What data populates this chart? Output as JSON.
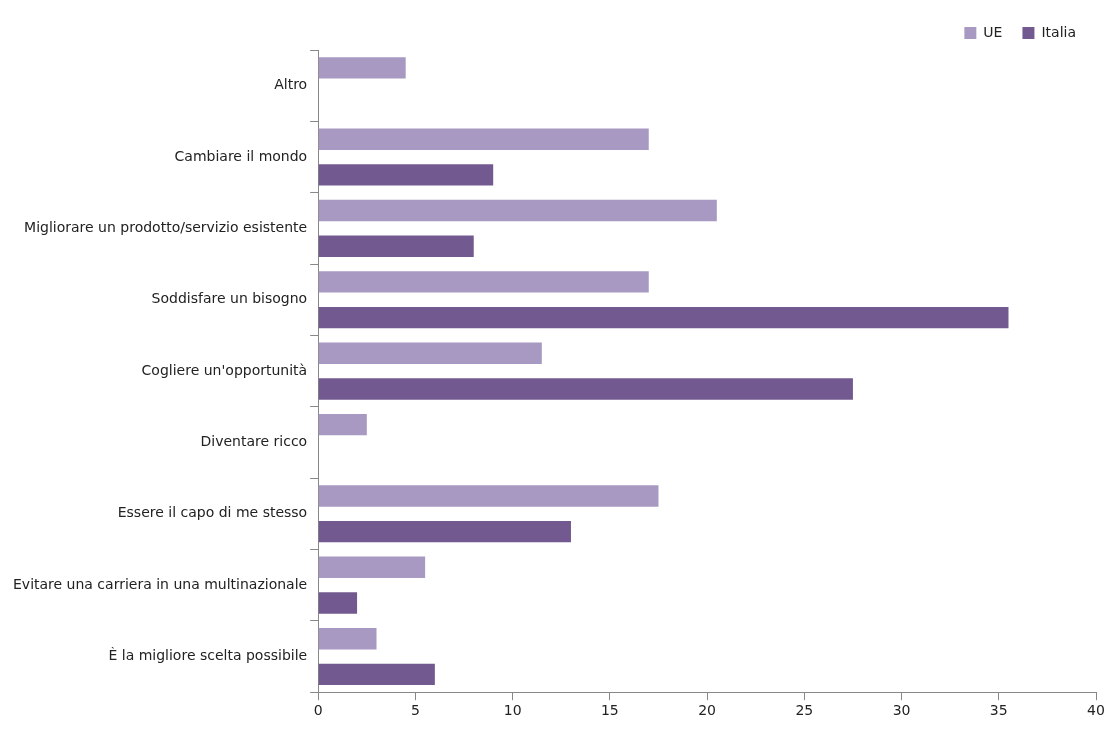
{
  "chart_data": {
    "type": "bar",
    "orientation": "horizontal",
    "categories": [
      "Altro",
      "Cambiare il mondo",
      "Migliorare un prodotto/servizio esistente",
      "Soddisfare un bisogno",
      "Cogliere un'opportunità",
      "Diventare ricco",
      "Essere il capo di me stesso",
      "Evitare una carriera in una multinazionale",
      "È la migliore scelta possibile"
    ],
    "series": [
      {
        "name": "UE",
        "color": "#a899c2",
        "values": [
          4.5,
          17,
          20.5,
          17,
          11.5,
          2.5,
          17.5,
          5.5,
          3
        ]
      },
      {
        "name": "Italia",
        "color": "#725a91",
        "values": [
          null,
          9,
          8,
          35.5,
          27.5,
          null,
          13,
          2,
          6
        ]
      }
    ],
    "xlim": [
      0,
      40
    ],
    "xticks": [
      0,
      5,
      10,
      15,
      20,
      25,
      30,
      35,
      40
    ],
    "grid": false,
    "legend": "top right"
  }
}
